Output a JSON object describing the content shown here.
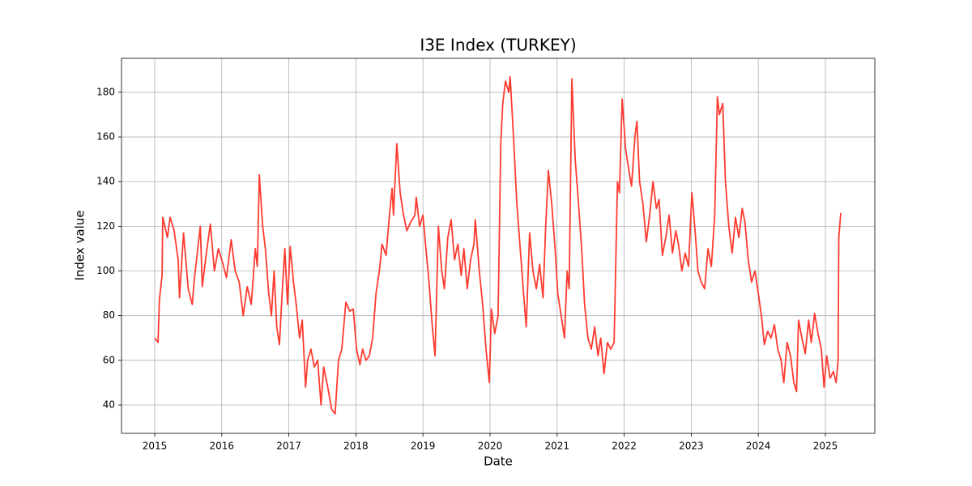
{
  "chart_data": {
    "type": "line",
    "title": "I3E Index (TURKEY)",
    "x_label": "Date",
    "y_label": "Index value",
    "color": "#ff3b30",
    "grid": true,
    "xlim": [
      2014.505,
      2025.737
    ],
    "ylim": [
      27.3,
      195.2
    ],
    "xticks": [
      2015,
      2016,
      2017,
      2018,
      2019,
      2020,
      2021,
      2022,
      2023,
      2024,
      2025
    ],
    "yticks": [
      40,
      60,
      80,
      100,
      120,
      140,
      160,
      180
    ],
    "x": [
      2015.0,
      2015.05,
      2015.07,
      2015.11,
      2015.12,
      2015.19,
      2015.23,
      2015.29,
      2015.35,
      2015.37,
      2015.43,
      2015.5,
      2015.56,
      2015.59,
      2015.68,
      2015.71,
      2015.77,
      2015.83,
      2015.89,
      2015.95,
      2016.01,
      2016.07,
      2016.14,
      2016.2,
      2016.26,
      2016.32,
      2016.38,
      2016.44,
      2016.5,
      2016.53,
      2016.56,
      2016.61,
      2016.65,
      2016.7,
      2016.74,
      2016.78,
      2016.82,
      2016.86,
      2016.9,
      2016.94,
      2016.98,
      2017.02,
      2017.07,
      2017.11,
      2017.16,
      2017.2,
      2017.25,
      2017.28,
      2017.33,
      2017.38,
      2017.43,
      2017.48,
      2017.52,
      2017.58,
      2017.64,
      2017.69,
      2017.74,
      2017.79,
      2017.85,
      2017.91,
      2017.96,
      2018.01,
      2018.06,
      2018.1,
      2018.15,
      2018.2,
      2018.25,
      2018.3,
      2018.35,
      2018.39,
      2018.45,
      2018.5,
      2018.54,
      2018.56,
      2018.61,
      2018.66,
      2018.71,
      2018.76,
      2018.82,
      2018.88,
      2018.9,
      2018.95,
      2019.0,
      2019.05,
      2019.09,
      2019.14,
      2019.18,
      2019.23,
      2019.28,
      2019.32,
      2019.37,
      2019.42,
      2019.47,
      2019.52,
      2019.57,
      2019.61,
      2019.66,
      2019.71,
      2019.76,
      2019.78,
      2019.84,
      2019.89,
      2019.94,
      2019.99,
      2020.02,
      2020.07,
      2020.12,
      2020.16,
      2020.19,
      2020.23,
      2020.28,
      2020.3,
      2020.35,
      2020.4,
      2020.45,
      2020.5,
      2020.54,
      2020.59,
      2020.64,
      2020.69,
      2020.74,
      2020.79,
      2020.83,
      2020.87,
      2020.92,
      2020.97,
      2021.01,
      2021.06,
      2021.11,
      2021.15,
      2021.18,
      2021.22,
      2021.27,
      2021.32,
      2021.37,
      2021.41,
      2021.46,
      2021.51,
      2021.56,
      2021.61,
      2021.65,
      2021.7,
      2021.75,
      2021.8,
      2021.85,
      2021.9,
      2021.93,
      2021.97,
      2022.02,
      2022.07,
      2022.11,
      2022.16,
      2022.19,
      2022.23,
      2022.28,
      2022.33,
      2022.38,
      2022.43,
      2022.48,
      2022.52,
      2022.57,
      2022.62,
      2022.67,
      2022.72,
      2022.77,
      2022.81,
      2022.86,
      2022.91,
      2022.96,
      2023.01,
      2023.06,
      2023.1,
      2023.15,
      2023.2,
      2023.25,
      2023.3,
      2023.35,
      2023.39,
      2023.42,
      2023.47,
      2023.51,
      2023.56,
      2023.61,
      2023.66,
      2023.71,
      2023.76,
      2023.8,
      2023.85,
      2023.9,
      2023.95,
      2024.0,
      2024.05,
      2024.09,
      2024.14,
      2024.19,
      2024.24,
      2024.29,
      2024.34,
      2024.38,
      2024.43,
      2024.48,
      2024.53,
      2024.57,
      2024.6,
      2024.65,
      2024.7,
      2024.75,
      2024.79,
      2024.84,
      2024.89,
      2024.94,
      2024.98,
      2025.02,
      2025.07,
      2025.12,
      2025.16,
      2025.19,
      2025.2,
      2025.23
    ],
    "values": [
      70,
      68,
      87,
      98,
      124,
      115,
      124,
      118,
      105,
      88,
      117,
      92,
      85,
      96,
      120,
      93,
      108,
      121,
      100,
      110,
      104,
      97,
      114,
      100,
      95,
      80,
      93,
      85,
      110,
      102,
      143,
      120,
      110,
      90,
      80,
      100,
      75,
      67,
      90,
      110,
      85,
      111,
      95,
      85,
      70,
      78,
      48,
      60,
      65,
      57,
      60,
      40,
      57,
      48,
      38,
      36,
      60,
      65,
      86,
      82,
      83,
      65,
      58,
      65,
      60,
      62,
      70,
      90,
      100,
      112,
      107,
      125,
      137,
      125,
      157,
      135,
      125,
      118,
      122,
      125,
      133,
      120,
      125,
      108,
      95,
      75,
      62,
      120,
      100,
      92,
      115,
      123,
      105,
      112,
      98,
      110,
      92,
      105,
      112,
      123,
      100,
      85,
      65,
      50,
      83,
      72,
      80,
      157,
      175,
      185,
      180,
      187,
      160,
      130,
      110,
      90,
      75,
      117,
      100,
      92,
      103,
      88,
      120,
      145,
      130,
      110,
      90,
      80,
      70,
      100,
      92,
      186,
      150,
      130,
      108,
      85,
      70,
      65,
      75,
      62,
      70,
      54,
      68,
      65,
      68,
      140,
      135,
      177,
      155,
      145,
      138,
      160,
      167,
      140,
      130,
      113,
      125,
      140,
      128,
      132,
      107,
      115,
      125,
      108,
      118,
      112,
      100,
      108,
      102,
      135,
      117,
      100,
      95,
      92,
      110,
      102,
      125,
      178,
      170,
      175,
      140,
      120,
      108,
      124,
      115,
      128,
      122,
      105,
      95,
      100,
      90,
      79,
      67,
      73,
      70,
      76,
      65,
      60,
      50,
      68,
      62,
      50,
      46,
      78,
      70,
      63,
      78,
      68,
      81,
      72,
      65,
      48,
      62,
      52,
      55,
      50,
      60,
      115,
      126
    ]
  }
}
